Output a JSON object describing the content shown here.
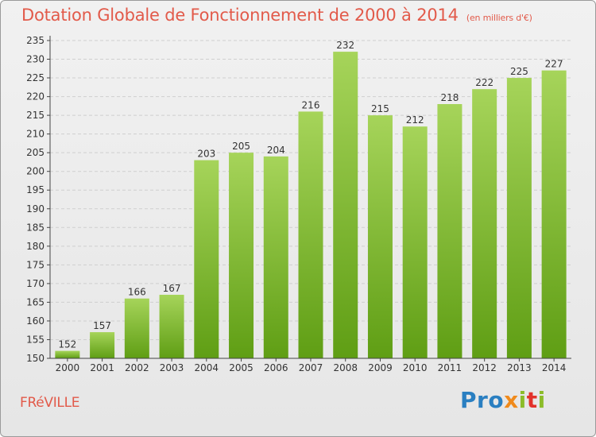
{
  "title": "Dotation Globale de Fonctionnement de 2000 à 2014",
  "unit": "(en milliers d'€)",
  "commune": "FRéVILLE",
  "brand": {
    "parts": [
      "Pro",
      "x",
      "i",
      "t",
      "i"
    ],
    "colors": [
      "#2a7fc1",
      "#f08a1c",
      "#8cbc2a",
      "#e2322b",
      "#8cbc2a"
    ]
  },
  "colors": {
    "title": "#e25a4a",
    "bar_top": "#a6d45a",
    "bar_bottom": "#5f9e14",
    "grid": "#cfcfcf",
    "axis": "#444444",
    "label": "#333333"
  },
  "chart_data": {
    "type": "bar",
    "categories": [
      "2000",
      "2001",
      "2002",
      "2003",
      "2004",
      "2005",
      "2006",
      "2007",
      "2008",
      "2009",
      "2010",
      "2011",
      "2012",
      "2013",
      "2014"
    ],
    "values": [
      152,
      157,
      166,
      167,
      203,
      205,
      204,
      216,
      232,
      215,
      212,
      218,
      222,
      225,
      227
    ],
    "ylim": [
      150,
      235
    ],
    "ytick_step": 5,
    "grid": true,
    "legend": "none",
    "data_labels": true
  }
}
